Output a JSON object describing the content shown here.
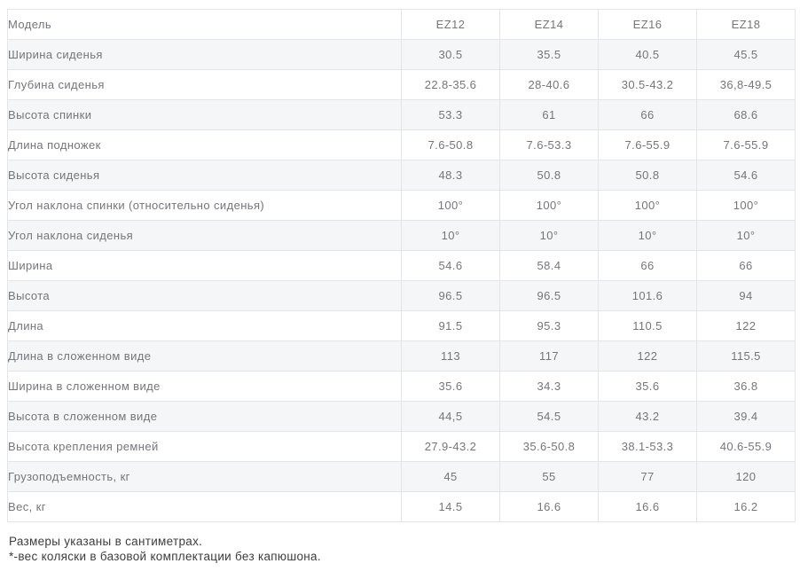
{
  "table": {
    "header": {
      "label": "Модель",
      "models": [
        "EZ12",
        "EZ14",
        "EZ16",
        "EZ18"
      ]
    },
    "rows": [
      {
        "label": "Ширина сиденья",
        "values": [
          "30.5",
          "35.5",
          "40.5",
          "45.5"
        ]
      },
      {
        "label": "Глубина сиденья",
        "values": [
          "22.8-35.6",
          "28-40.6",
          "30.5-43.2",
          "36,8-49.5"
        ]
      },
      {
        "label": "Высота спинки",
        "values": [
          "53.3",
          "61",
          "66",
          "68.6"
        ]
      },
      {
        "label": "Длина подножек",
        "values": [
          "7.6-50.8",
          "7.6-53.3",
          "7.6-55.9",
          "7.6-55.9"
        ]
      },
      {
        "label": "Высота сиденья",
        "values": [
          "48.3",
          "50.8",
          "50.8",
          "54.6"
        ]
      },
      {
        "label": "Угол наклона спинки (относительно сиденья)",
        "values": [
          "100°",
          "100°",
          "100°",
          "100°"
        ]
      },
      {
        "label": "Угол наклона сиденья",
        "values": [
          "10°",
          "10°",
          "10°",
          "10°"
        ]
      },
      {
        "label": "Ширина",
        "values": [
          "54.6",
          "58.4",
          "66",
          "66"
        ]
      },
      {
        "label": "Высота",
        "values": [
          "96.5",
          "96.5",
          "101.6",
          "94"
        ]
      },
      {
        "label": "Длина",
        "values": [
          "91.5",
          "95.3",
          "110.5",
          "122"
        ]
      },
      {
        "label": "Длина в сложенном виде",
        "values": [
          "113",
          "117",
          "122",
          "115.5"
        ]
      },
      {
        "label": "Ширина в сложенном виде",
        "values": [
          "35.6",
          "34.3",
          "35.6",
          "36.8"
        ]
      },
      {
        "label": "Высота в сложенном виде",
        "values": [
          "44,5",
          "54.5",
          "43.2",
          "39.4"
        ]
      },
      {
        "label": "Высота крепления ремней",
        "values": [
          "27.9-43.2",
          "35.6-50.8",
          "38.1-53.3",
          "40.6-55.9"
        ]
      },
      {
        "label": "Грузоподъемность, кг",
        "values": [
          "45",
          "55",
          "77",
          "120"
        ]
      },
      {
        "label": "Вес, кг",
        "values": [
          "14.5",
          "16.6",
          "16.6",
          "16.2"
        ]
      }
    ]
  },
  "footnotes": {
    "line1": "Размеры указаны в сантиметрах.",
    "line2": "*-вес коляски в базовой комплектации без капюшона."
  },
  "colors": {
    "stripe_background": "#f4f6f7",
    "border": "#e3e5e6",
    "cell_text": "#74767b",
    "footnote_text": "#3d3d3f"
  }
}
